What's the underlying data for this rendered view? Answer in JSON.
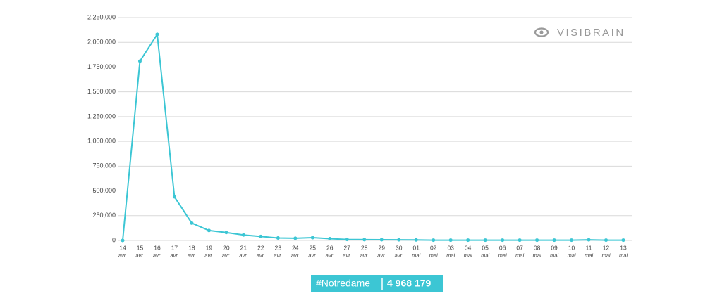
{
  "chart_data": {
    "type": "line",
    "categories": [
      [
        "14",
        "avr."
      ],
      [
        "15",
        "avr."
      ],
      [
        "16",
        "avr."
      ],
      [
        "17",
        "avr."
      ],
      [
        "18",
        "avr."
      ],
      [
        "19",
        "avr."
      ],
      [
        "20",
        "avr."
      ],
      [
        "21",
        "avr."
      ],
      [
        "22",
        "avr."
      ],
      [
        "23",
        "avr."
      ],
      [
        "24",
        "avr."
      ],
      [
        "25",
        "avr."
      ],
      [
        "26",
        "avr."
      ],
      [
        "27",
        "avr."
      ],
      [
        "28",
        "avr."
      ],
      [
        "29",
        "avr."
      ],
      [
        "30",
        "avr."
      ],
      [
        "01",
        "mai"
      ],
      [
        "02",
        "mai"
      ],
      [
        "03",
        "mai"
      ],
      [
        "04",
        "mai"
      ],
      [
        "05",
        "mai"
      ],
      [
        "06",
        "mai"
      ],
      [
        "07",
        "mai"
      ],
      [
        "08",
        "mai"
      ],
      [
        "09",
        "mai"
      ],
      [
        "10",
        "mai"
      ],
      [
        "11",
        "mai"
      ],
      [
        "12",
        "mai"
      ],
      [
        "13",
        "mai"
      ]
    ],
    "values": [
      0,
      1810000,
      2080000,
      440000,
      175000,
      100000,
      80000,
      55000,
      40000,
      25000,
      22000,
      28000,
      18000,
      10000,
      8000,
      7000,
      6000,
      5000,
      3000,
      3000,
      3000,
      3000,
      3000,
      3000,
      3000,
      3000,
      3000,
      6000,
      3000,
      3000
    ],
    "color": "#3cc6d4",
    "ylim": [
      0,
      2250000
    ],
    "yticks": [
      0,
      {
        "value": 250000,
        "label": "250,000"
      },
      {
        "value": 500000,
        "label": "500,000"
      },
      {
        "value": 750000,
        "label": "750,000"
      },
      {
        "value": 1000000,
        "label": "1,000,000"
      },
      {
        "value": 1250000,
        "label": "1,250,000"
      },
      {
        "value": 1500000,
        "label": "1,500,000"
      },
      {
        "value": 1750000,
        "label": "1,750,000"
      },
      {
        "value": 2000000,
        "label": "2,000,000"
      },
      {
        "value": 2250000,
        "label": "2,250,000"
      }
    ],
    "grid": true
  },
  "watermark": "VISIBRAIN",
  "badge": {
    "hashtag": "#Notredame",
    "total": "4 968 179"
  }
}
